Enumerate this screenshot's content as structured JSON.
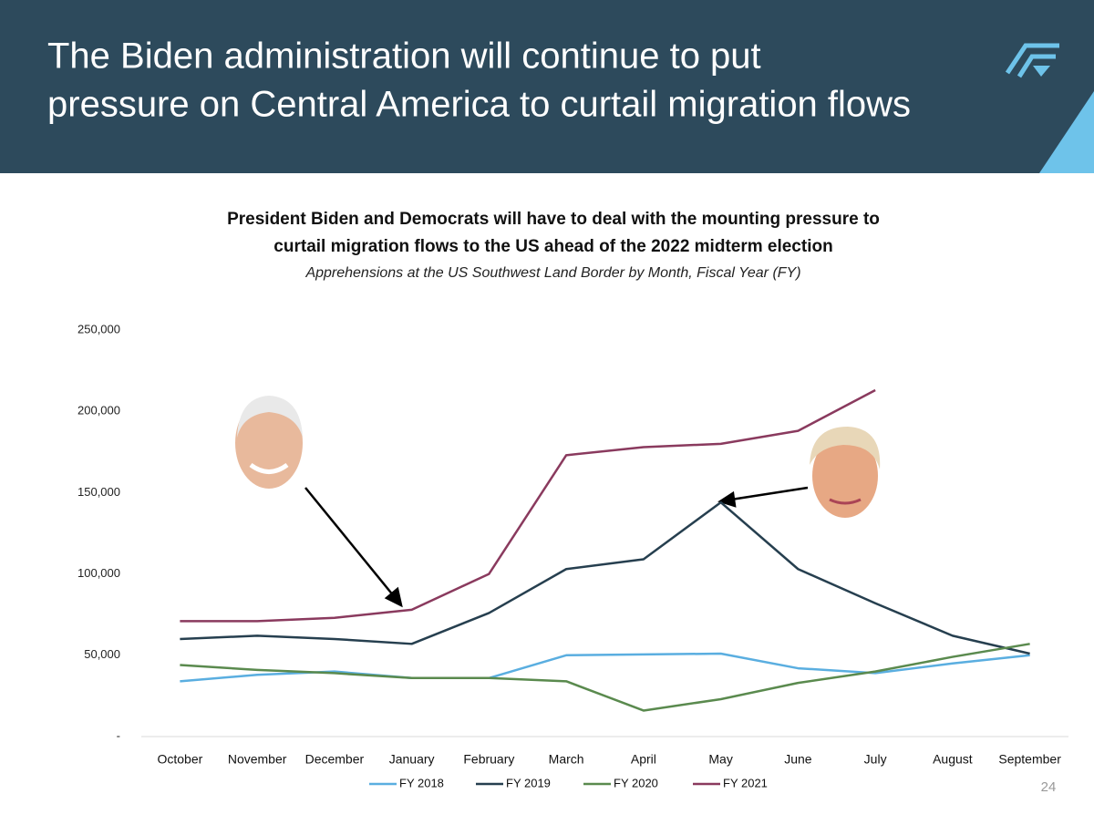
{
  "header": {
    "title": [
      "The Biden administration will continue to put",
      "pressure on Central America to curtail migration flows"
    ]
  },
  "page_number": "24",
  "chart_data": {
    "type": "line",
    "title": [
      "President Biden and Democrats will have to deal with the mounting pressure to",
      "curtail migration flows to the US ahead of the 2022 midterm election"
    ],
    "subtitle": "Apprehensions at the US Southwest Land Border by Month, Fiscal Year (FY)",
    "categories": [
      "October",
      "November",
      "December",
      "January",
      "February",
      "March",
      "April",
      "May",
      "June",
      "July",
      "August",
      "September"
    ],
    "series": [
      {
        "name": "FY 2018",
        "color": "#5aaee0",
        "values": [
          34000,
          38000,
          40000,
          36000,
          36000,
          50000,
          50500,
          51000,
          42000,
          39000,
          45000,
          50000
        ]
      },
      {
        "name": "FY 2019",
        "color": "#263f4f",
        "values": [
          60000,
          62000,
          60000,
          57000,
          76000,
          103000,
          109000,
          144000,
          103000,
          82000,
          62000,
          51000
        ]
      },
      {
        "name": "FY 2020",
        "color": "#5a8a4e",
        "values": [
          44000,
          41000,
          39000,
          36000,
          36000,
          34000,
          16000,
          23000,
          33000,
          40000,
          49000,
          57000
        ]
      },
      {
        "name": "FY 2021",
        "color": "#8a3a5e",
        "values": [
          71000,
          71000,
          73000,
          78000,
          100000,
          173000,
          178000,
          180000,
          188000,
          213000,
          null,
          null
        ]
      }
    ],
    "ylim": [
      0,
      250000
    ],
    "yticks": [
      {
        "value": 0,
        "label": "-"
      },
      {
        "value": 50000,
        "label": "50,000"
      },
      {
        "value": 100000,
        "label": "100,000"
      },
      {
        "value": 150000,
        "label": "150,000"
      },
      {
        "value": 200000,
        "label": "200,000"
      },
      {
        "value": 250000,
        "label": "250,000"
      }
    ],
    "legend": "bottom"
  }
}
